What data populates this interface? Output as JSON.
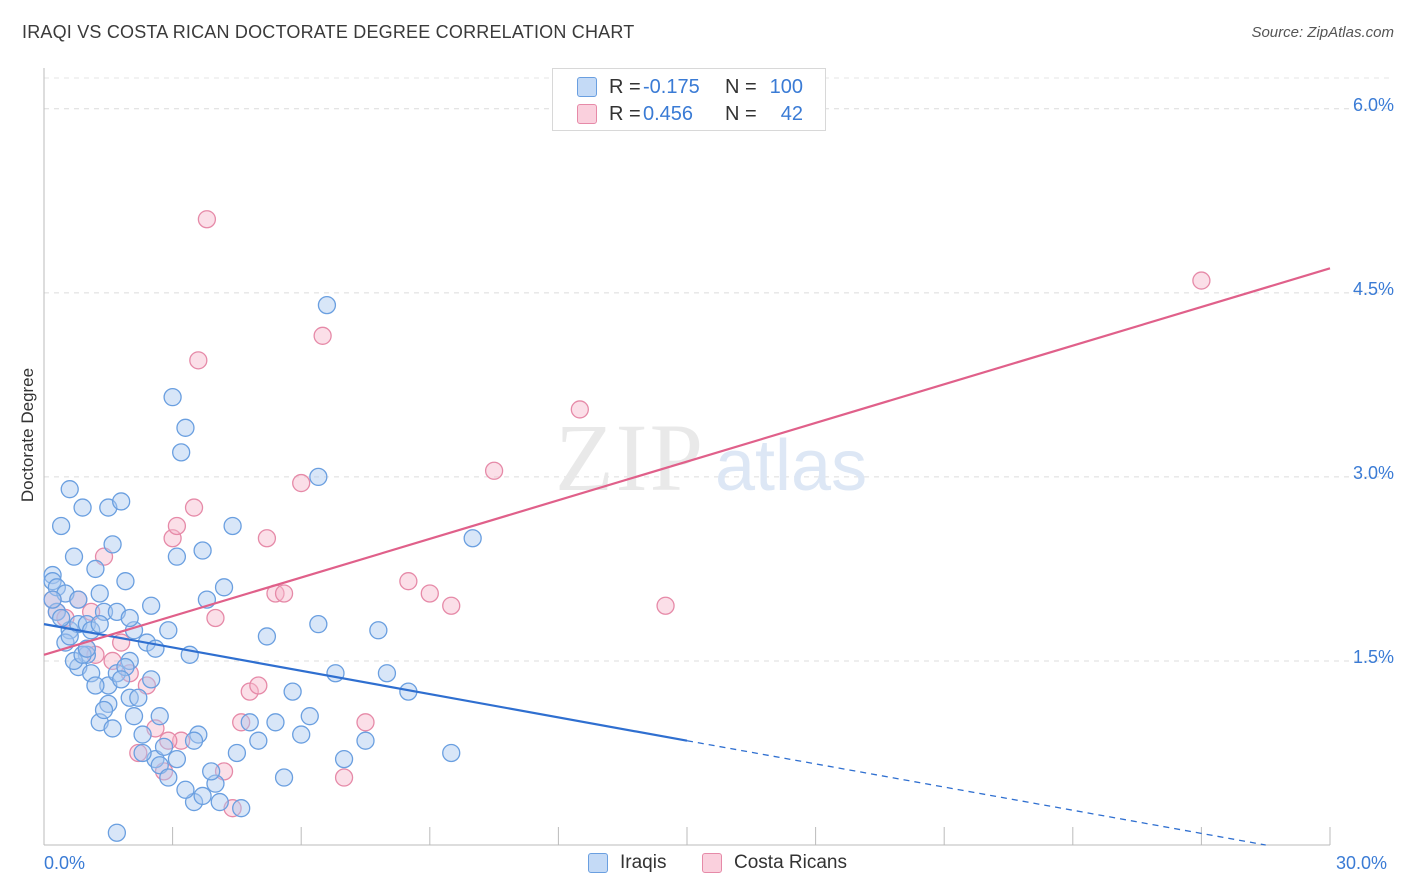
{
  "header": {
    "title": "IRAQI VS COSTA RICAN DOCTORATE DEGREE CORRELATION CHART",
    "source": "Source: ZipAtlas.com"
  },
  "watermark": {
    "zip": "ZIP",
    "atlas": "atlas"
  },
  "legend": {
    "rows": [
      {
        "r_label": "R =",
        "r_value": "-0.175",
        "n_label": "N =",
        "n_value": "100",
        "color": "#a8c8f0"
      },
      {
        "r_label": "R =",
        "r_value": "0.456",
        "n_label": "N =",
        "n_value": "42",
        "color": "#f6b8cc"
      }
    ]
  },
  "bottom_legend": {
    "series1": "Iraqis",
    "series2": "Costa Ricans"
  },
  "colors": {
    "iraqis_fill": "#a8c8f0",
    "iraqis_stroke": "#6a9fe0",
    "iraqis_line": "#2f6fd0",
    "costa_fill": "#f6b8cc",
    "costa_stroke": "#e68aa8",
    "costa_line": "#e0608a",
    "tick_text": "#3a7bd5"
  },
  "chart_data": {
    "type": "scatter",
    "title": "IRAQI VS COSTA RICAN DOCTORATE DEGREE CORRELATION CHART",
    "xlabel": "",
    "ylabel": "Doctorate Degree",
    "xlim": [
      0,
      30
    ],
    "ylim": [
      0,
      6.3
    ],
    "x_tick_labels": [
      "0.0%",
      "30.0%"
    ],
    "y_ticks": [
      1.5,
      3.0,
      4.5,
      6.0
    ],
    "y_tick_labels": [
      "1.5%",
      "3.0%",
      "4.5%",
      "6.0%"
    ],
    "grid": true,
    "series": [
      {
        "name": "Iraqis",
        "r": -0.175,
        "n": 100,
        "trend": {
          "x0": 0,
          "y0": 1.8,
          "x1": 15,
          "y1": 0.85,
          "dashed_to_x": 28.5,
          "dashed_to_y": 0.0
        },
        "points": [
          [
            0.2,
            2.2
          ],
          [
            0.2,
            2.15
          ],
          [
            0.3,
            2.1
          ],
          [
            0.4,
            2.6
          ],
          [
            0.5,
            2.05
          ],
          [
            0.6,
            2.9
          ],
          [
            0.6,
            1.75
          ],
          [
            0.7,
            2.35
          ],
          [
            0.8,
            1.45
          ],
          [
            0.8,
            1.8
          ],
          [
            0.9,
            2.75
          ],
          [
            1.0,
            1.55
          ],
          [
            1.0,
            1.8
          ],
          [
            1.1,
            1.75
          ],
          [
            1.2,
            2.25
          ],
          [
            1.3,
            2.05
          ],
          [
            1.3,
            1.0
          ],
          [
            1.4,
            1.9
          ],
          [
            1.5,
            1.3
          ],
          [
            1.5,
            2.75
          ],
          [
            1.6,
            2.45
          ],
          [
            1.7,
            1.9
          ],
          [
            1.8,
            2.8
          ],
          [
            1.9,
            2.15
          ],
          [
            2.0,
            1.5
          ],
          [
            2.0,
            1.2
          ],
          [
            2.1,
            1.75
          ],
          [
            2.2,
            1.2
          ],
          [
            2.3,
            0.9
          ],
          [
            2.4,
            1.65
          ],
          [
            2.5,
            1.35
          ],
          [
            2.6,
            0.7
          ],
          [
            2.6,
            1.6
          ],
          [
            2.7,
            1.05
          ],
          [
            2.8,
            0.8
          ],
          [
            2.9,
            1.75
          ],
          [
            3.0,
            3.65
          ],
          [
            3.1,
            2.35
          ],
          [
            3.2,
            3.2
          ],
          [
            3.3,
            3.4
          ],
          [
            3.4,
            1.55
          ],
          [
            3.5,
            0.35
          ],
          [
            3.6,
            0.9
          ],
          [
            3.7,
            2.4
          ],
          [
            3.8,
            2.0
          ],
          [
            4.0,
            0.5
          ],
          [
            4.2,
            2.1
          ],
          [
            4.4,
            2.6
          ],
          [
            4.5,
            0.75
          ],
          [
            4.6,
            0.3
          ],
          [
            4.8,
            1.0
          ],
          [
            5.0,
            0.85
          ],
          [
            5.2,
            1.7
          ],
          [
            5.4,
            1.0
          ],
          [
            5.6,
            0.55
          ],
          [
            5.8,
            1.25
          ],
          [
            6.0,
            0.9
          ],
          [
            6.2,
            1.05
          ],
          [
            6.4,
            1.8
          ],
          [
            6.8,
            1.4
          ],
          [
            6.4,
            3.0
          ],
          [
            6.6,
            4.4
          ],
          [
            7.0,
            0.7
          ],
          [
            7.5,
            0.85
          ],
          [
            7.8,
            1.75
          ],
          [
            8.0,
            1.4
          ],
          [
            8.5,
            1.25
          ],
          [
            9.5,
            0.75
          ],
          [
            10.0,
            2.5
          ],
          [
            1.7,
            0.1
          ],
          [
            0.3,
            1.9
          ],
          [
            0.5,
            1.65
          ],
          [
            0.7,
            1.5
          ],
          [
            0.9,
            1.55
          ],
          [
            1.1,
            1.4
          ],
          [
            1.3,
            1.8
          ],
          [
            1.5,
            1.15
          ],
          [
            1.7,
            1.4
          ],
          [
            1.9,
            1.45
          ],
          [
            2.1,
            1.05
          ],
          [
            2.3,
            0.75
          ],
          [
            2.5,
            1.95
          ],
          [
            2.7,
            0.65
          ],
          [
            2.9,
            0.55
          ],
          [
            3.1,
            0.7
          ],
          [
            3.3,
            0.45
          ],
          [
            3.5,
            0.85
          ],
          [
            3.7,
            0.4
          ],
          [
            3.9,
            0.6
          ],
          [
            4.1,
            0.35
          ],
          [
            0.2,
            2.0
          ],
          [
            0.4,
            1.85
          ],
          [
            0.6,
            1.7
          ],
          [
            0.8,
            2.0
          ],
          [
            1.0,
            1.6
          ],
          [
            1.2,
            1.3
          ],
          [
            1.4,
            1.1
          ],
          [
            1.6,
            0.95
          ],
          [
            1.8,
            1.35
          ],
          [
            2.0,
            1.85
          ]
        ]
      },
      {
        "name": "Costa Ricans",
        "r": 0.456,
        "n": 42,
        "trend": {
          "x0": 0,
          "y0": 1.55,
          "x1": 30,
          "y1": 4.7
        },
        "points": [
          [
            0.2,
            2.0
          ],
          [
            0.3,
            1.9
          ],
          [
            0.5,
            1.85
          ],
          [
            0.8,
            2.0
          ],
          [
            1.0,
            1.6
          ],
          [
            1.2,
            1.55
          ],
          [
            1.4,
            2.35
          ],
          [
            1.6,
            1.5
          ],
          [
            1.8,
            1.65
          ],
          [
            2.0,
            1.4
          ],
          [
            2.2,
            0.75
          ],
          [
            2.4,
            1.3
          ],
          [
            2.6,
            0.95
          ],
          [
            2.8,
            0.6
          ],
          [
            3.0,
            2.5
          ],
          [
            3.1,
            2.6
          ],
          [
            3.2,
            0.85
          ],
          [
            3.5,
            2.75
          ],
          [
            3.6,
            3.95
          ],
          [
            3.8,
            5.1
          ],
          [
            4.0,
            1.85
          ],
          [
            4.2,
            0.6
          ],
          [
            4.4,
            0.3
          ],
          [
            4.6,
            1.0
          ],
          [
            4.8,
            1.25
          ],
          [
            5.0,
            1.3
          ],
          [
            5.2,
            2.5
          ],
          [
            5.4,
            2.05
          ],
          [
            5.6,
            2.05
          ],
          [
            6.0,
            2.95
          ],
          [
            6.5,
            4.15
          ],
          [
            7.0,
            0.55
          ],
          [
            7.5,
            1.0
          ],
          [
            8.5,
            2.15
          ],
          [
            9.0,
            2.05
          ],
          [
            9.5,
            1.95
          ],
          [
            10.5,
            3.05
          ],
          [
            12.5,
            3.55
          ],
          [
            14.5,
            1.95
          ],
          [
            27.0,
            4.6
          ],
          [
            1.1,
            1.9
          ],
          [
            2.9,
            0.85
          ]
        ]
      }
    ]
  }
}
